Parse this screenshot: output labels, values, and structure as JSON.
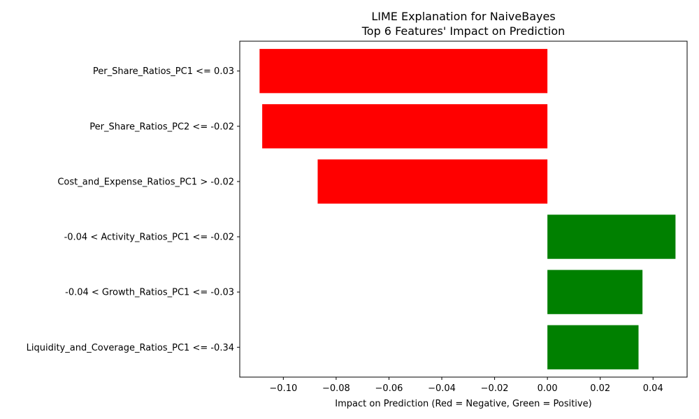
{
  "chart_data": {
    "type": "bar",
    "orientation": "horizontal",
    "title": "LIME Explanation for NaiveBayes",
    "subtitle": "Top 6 Features' Impact on Prediction",
    "xlabel": "Impact on Prediction (Red = Negative, Green = Positive)",
    "ylabel": "",
    "categories": [
      "Per_Share_Ratios_PC1 <= 0.03",
      "Per_Share_Ratios_PC2 <= -0.02",
      "Cost_and_Expense_Ratios_PC1 > -0.02",
      "-0.04 < Activity_Ratios_PC1 <= -0.02",
      "-0.04 < Growth_Ratios_PC1 <= -0.03",
      "Liquidity_and_Coverage_Ratios_PC1 <= -0.34"
    ],
    "values": [
      -0.109,
      -0.108,
      -0.087,
      0.0485,
      0.036,
      0.0345
    ],
    "xlim": [
      -0.1165,
      0.0529
    ],
    "xticks": [
      -0.1,
      -0.08,
      -0.06,
      -0.04,
      -0.02,
      0.0,
      0.02,
      0.04
    ],
    "xtick_labels": [
      "−0.10",
      "−0.08",
      "−0.06",
      "−0.04",
      "−0.02",
      "0.00",
      "0.02",
      "0.04"
    ],
    "colors": {
      "negative": "#ff0000",
      "positive": "#008000"
    },
    "grid": false,
    "legend": false
  }
}
